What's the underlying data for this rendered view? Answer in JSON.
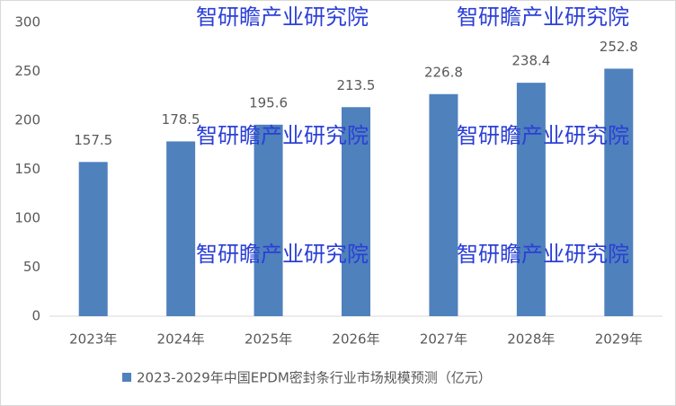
{
  "chart_data": {
    "type": "bar",
    "categories": [
      "2023年",
      "2024年",
      "2025年",
      "2026年",
      "2027年",
      "2028年",
      "2029年"
    ],
    "series": [
      {
        "name": "2023-2029年中国EPDM密封条行业市场规模预测（亿元）",
        "color": "#4f81bd",
        "values": [
          157.5,
          178.5,
          195.6,
          213.5,
          226.8,
          238.4,
          252.8
        ]
      }
    ],
    "ylim": [
      0,
      300
    ],
    "yticks": [
      0,
      50,
      100,
      150,
      200,
      250,
      300
    ],
    "grid": false,
    "legend": "bottom",
    "watermark": "智研瞻产业研究院"
  }
}
